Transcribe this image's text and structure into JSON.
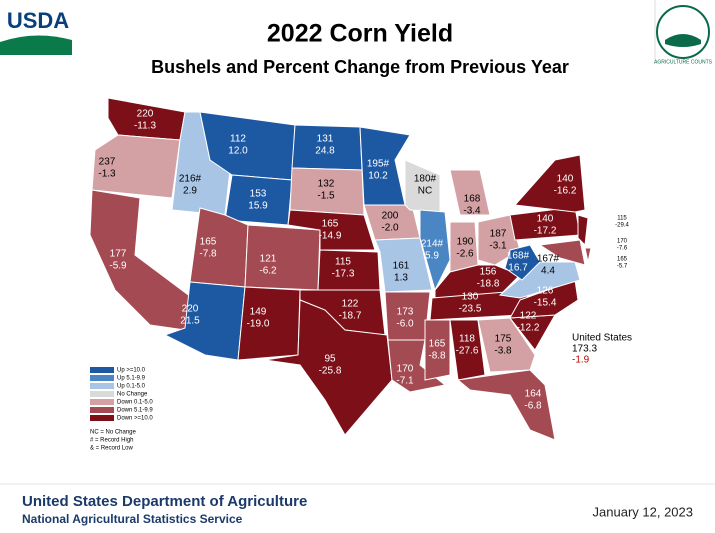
{
  "header": {
    "logo": "USDA",
    "title": "2022 Corn Yield",
    "subtitle": "Bushels and Percent Change from Previous Year",
    "badge": "AGRICULTURE COUNTS"
  },
  "legend": {
    "entries": [
      {
        "label": "Up >=10.0",
        "color": "#1d58a3"
      },
      {
        "label": "Up 5.1-9.9",
        "color": "#4a86c4"
      },
      {
        "label": "Up 0.1-5.0",
        "color": "#a9c5e5"
      },
      {
        "label": "No Change",
        "color": "#dadada"
      },
      {
        "label": "Down 0.1-5.0",
        "color": "#d3a1a3"
      },
      {
        "label": "Down 5.1-9.9",
        "color": "#a44a52"
      },
      {
        "label": "Down >=10.0",
        "color": "#7c0f17"
      }
    ],
    "notes": [
      "NC = No Change",
      "# = Record High",
      "& = Record Low"
    ]
  },
  "states": [
    {
      "yield": "220",
      "change": "-11.3",
      "class": 6
    },
    {
      "yield": "237",
      "change": "-1.3",
      "class": 4
    },
    {
      "yield": "177",
      "change": "-5.9",
      "class": 5
    },
    {
      "yield": "216#",
      "change": "2.9",
      "class": 2
    },
    {
      "yield": "112",
      "change": "12.0",
      "class": 0
    },
    {
      "yield": "153",
      "change": "15.9",
      "class": 0
    },
    {
      "yield": "165",
      "change": "-7.8",
      "class": 5
    },
    {
      "yield": "220",
      "change": "21.5",
      "class": 0
    },
    {
      "yield": "121",
      "change": "-6.2",
      "class": 5
    },
    {
      "yield": "149",
      "change": "-19.0",
      "class": 6
    },
    {
      "yield": "131",
      "change": "24.8",
      "class": 0
    },
    {
      "yield": "132",
      "change": "-1.5",
      "class": 4
    },
    {
      "yield": "165",
      "change": "-14.9",
      "class": 6
    },
    {
      "yield": "115",
      "change": "-17.3",
      "class": 6
    },
    {
      "yield": "122",
      "change": "-18.7",
      "class": 6
    },
    {
      "yield": "95",
      "change": "-25.8",
      "class": 6
    },
    {
      "yield": "195#",
      "change": "10.2",
      "class": 0
    },
    {
      "yield": "200",
      "change": "-2.0",
      "class": 4
    },
    {
      "yield": "161",
      "change": "1.3",
      "class": 2
    },
    {
      "yield": "173",
      "change": "-6.0",
      "class": 5
    },
    {
      "yield": "170",
      "change": "-7.1",
      "class": 5
    },
    {
      "yield": "180#",
      "change": "NC",
      "class": 3
    },
    {
      "yield": "214#",
      "change": "5.9",
      "class": 1
    },
    {
      "yield": "168",
      "change": "-3.4",
      "class": 4
    },
    {
      "yield": "190",
      "change": "-2.6",
      "class": 4
    },
    {
      "yield": "187",
      "change": "-3.1",
      "class": 4
    },
    {
      "yield": "156",
      "change": "-18.8",
      "class": 6
    },
    {
      "yield": "130",
      "change": "-23.5",
      "class": 6
    },
    {
      "yield": "165",
      "change": "-8.8",
      "class": 5
    },
    {
      "yield": "118",
      "change": "-27.6",
      "class": 6
    },
    {
      "yield": "175",
      "change": "-3.8",
      "class": 4
    },
    {
      "yield": "164",
      "change": "-6.8",
      "class": 5
    },
    {
      "yield": "122",
      "change": "-12.2",
      "class": 6
    },
    {
      "yield": "126",
      "change": "-15.4",
      "class": 6
    },
    {
      "yield": "167#",
      "change": "4.4",
      "class": 2
    },
    {
      "yield": "168#",
      "change": "16.7",
      "class": 0
    },
    {
      "yield": "140",
      "change": "-17.2",
      "class": 6
    },
    {
      "yield": "140",
      "change": "-16.2",
      "class": 6
    },
    {
      "yield": "115",
      "change": "-29.4",
      "class": 6
    },
    {
      "yield": "170",
      "change": "-7.6",
      "class": 5
    },
    {
      "yield": "165",
      "change": "-5.7",
      "class": 5
    }
  ],
  "national": {
    "label": "United States",
    "yield": "173.3",
    "change": "-1.9"
  },
  "footer": {
    "agency": "United States Department of Agriculture",
    "service": "National Agricultural Statistics Service",
    "date": "January 12, 2023"
  }
}
